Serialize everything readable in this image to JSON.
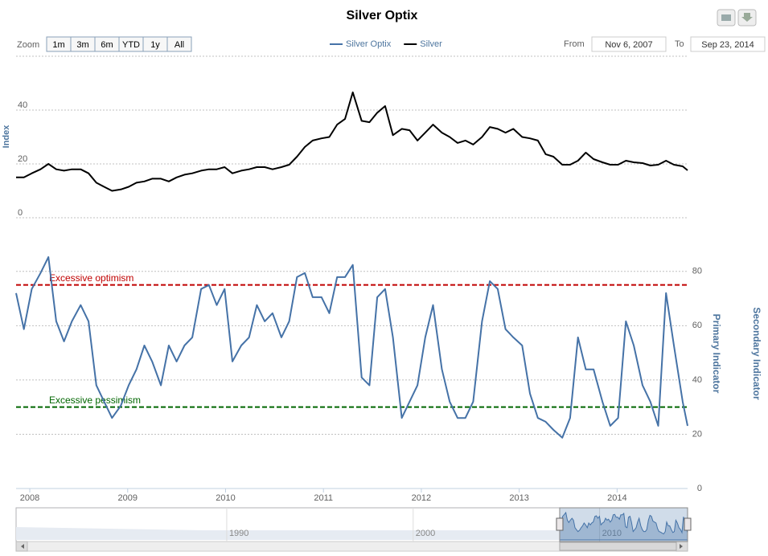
{
  "chart_data": {
    "type": "line",
    "title": "Silver Optix",
    "x": [
      2007.86,
      2007.94,
      2008.02,
      2008.11,
      2008.19,
      2008.27,
      2008.35,
      2008.43,
      2008.52,
      2008.6,
      2008.68,
      2008.76,
      2008.84,
      2008.93,
      2009.01,
      2009.09,
      2009.17,
      2009.25,
      2009.34,
      2009.42,
      2009.5,
      2009.58,
      2009.66,
      2009.75,
      2009.83,
      2009.91,
      2009.99,
      2010.07,
      2010.16,
      2010.24,
      2010.32,
      2010.4,
      2010.48,
      2010.57,
      2010.65,
      2010.73,
      2010.81,
      2010.89,
      2010.98,
      2011.06,
      2011.14,
      2011.22,
      2011.3,
      2011.39,
      2011.47,
      2011.55,
      2011.63,
      2011.71,
      2011.8,
      2011.88,
      2011.96,
      2012.04,
      2012.12,
      2012.21,
      2012.29,
      2012.37,
      2012.45,
      2012.53,
      2012.62,
      2012.7,
      2012.78,
      2012.86,
      2012.94,
      2013.03,
      2013.11,
      2013.19,
      2013.27,
      2013.35,
      2013.44,
      2013.52,
      2013.6,
      2013.68,
      2013.76,
      2013.85,
      2013.93,
      2014.01,
      2014.09,
      2014.17,
      2014.26,
      2014.34,
      2014.42,
      2014.5,
      2014.58,
      2014.67,
      2014.72
    ],
    "xlim": [
      2007.86,
      2014.72
    ],
    "xticks": [
      2008,
      2009,
      2010,
      2011,
      2012,
      2013,
      2014
    ],
    "series": [
      {
        "name": "Silver Optix",
        "color": "#4572a7",
        "axis": "y2",
        "values": [
          72,
          58.7,
          73.5,
          79.4,
          85.3,
          61.6,
          54.2,
          61.6,
          67.6,
          61.6,
          38,
          32,
          26,
          30.5,
          38,
          43.9,
          52.7,
          46.8,
          38,
          52.7,
          46.8,
          52.7,
          55.7,
          73.5,
          75,
          67.6,
          73.5,
          46.8,
          52.7,
          55.7,
          67.6,
          61.6,
          64.6,
          55.7,
          61.6,
          77.9,
          79.4,
          70.5,
          70.5,
          64.6,
          77.9,
          77.9,
          82.4,
          40.9,
          38,
          70.5,
          73.5,
          55.7,
          26,
          32,
          38,
          55.7,
          67.6,
          43.9,
          32,
          26,
          26,
          32,
          61.6,
          76.4,
          73.5,
          58.7,
          55.7,
          52.7,
          35,
          26,
          24.6,
          21.6,
          18.7,
          26,
          55.7,
          43.9,
          43.9,
          32,
          23.1,
          26,
          61.6,
          52.7,
          38,
          32,
          23.1,
          72,
          52.7,
          32,
          23.1
        ]
      },
      {
        "name": "Silver",
        "color": "#000000",
        "values": [
          15,
          15,
          16.5,
          18,
          20,
          18,
          17.5,
          18,
          18,
          16.5,
          13,
          11.5,
          10,
          10.5,
          11.5,
          13,
          13.5,
          14.5,
          14.5,
          13.5,
          15,
          16,
          16.5,
          17.5,
          18,
          18,
          18.8,
          16.5,
          17.5,
          18,
          18.8,
          18.8,
          18,
          18.8,
          19.7,
          22.7,
          26.3,
          28.7,
          29.5,
          30,
          34.6,
          36.7,
          46.6,
          36,
          35.5,
          39,
          41.5,
          30.7,
          33,
          32.5,
          28.7,
          31.6,
          34.6,
          31.6,
          30,
          27.8,
          28.7,
          27.2,
          30,
          33.7,
          33,
          31.6,
          33,
          30,
          29.5,
          28.7,
          23.6,
          22.7,
          19.7,
          19.7,
          21.2,
          24.2,
          21.8,
          20.6,
          19.7,
          19.7,
          21.2,
          20.6,
          20.3,
          19.4,
          19.7,
          21.2,
          19.7,
          19.1,
          17.6
        ]
      }
    ],
    "ylabel": "Index",
    "ylim": [
      0,
      60
    ],
    "yticks": [
      0,
      20,
      40
    ],
    "y2label": "Primary Indicator",
    "y2lim": [
      0,
      90
    ],
    "y2ticks": [
      0,
      20,
      40,
      60,
      80
    ],
    "y3label": "Secondary Indicator",
    "plot_lines": [
      {
        "value": 75,
        "label": "Excessive optimism",
        "color": "#c00000"
      },
      {
        "value": 30,
        "label": "Excessive pessimism",
        "color": "#006600"
      }
    ],
    "grid": true
  },
  "range_selector": {
    "label": "Zoom",
    "buttons": [
      "1m",
      "3m",
      "6m",
      "YTD",
      "1y",
      "All"
    ]
  },
  "date_range": {
    "from_label": "From",
    "from": "Nov 6, 2007",
    "to_label": "To",
    "to": "Sep 23, 2014"
  },
  "navigator": {
    "xlim": [
      1978.7,
      2014.72
    ],
    "xticks": [
      1990,
      2000,
      2010
    ]
  }
}
